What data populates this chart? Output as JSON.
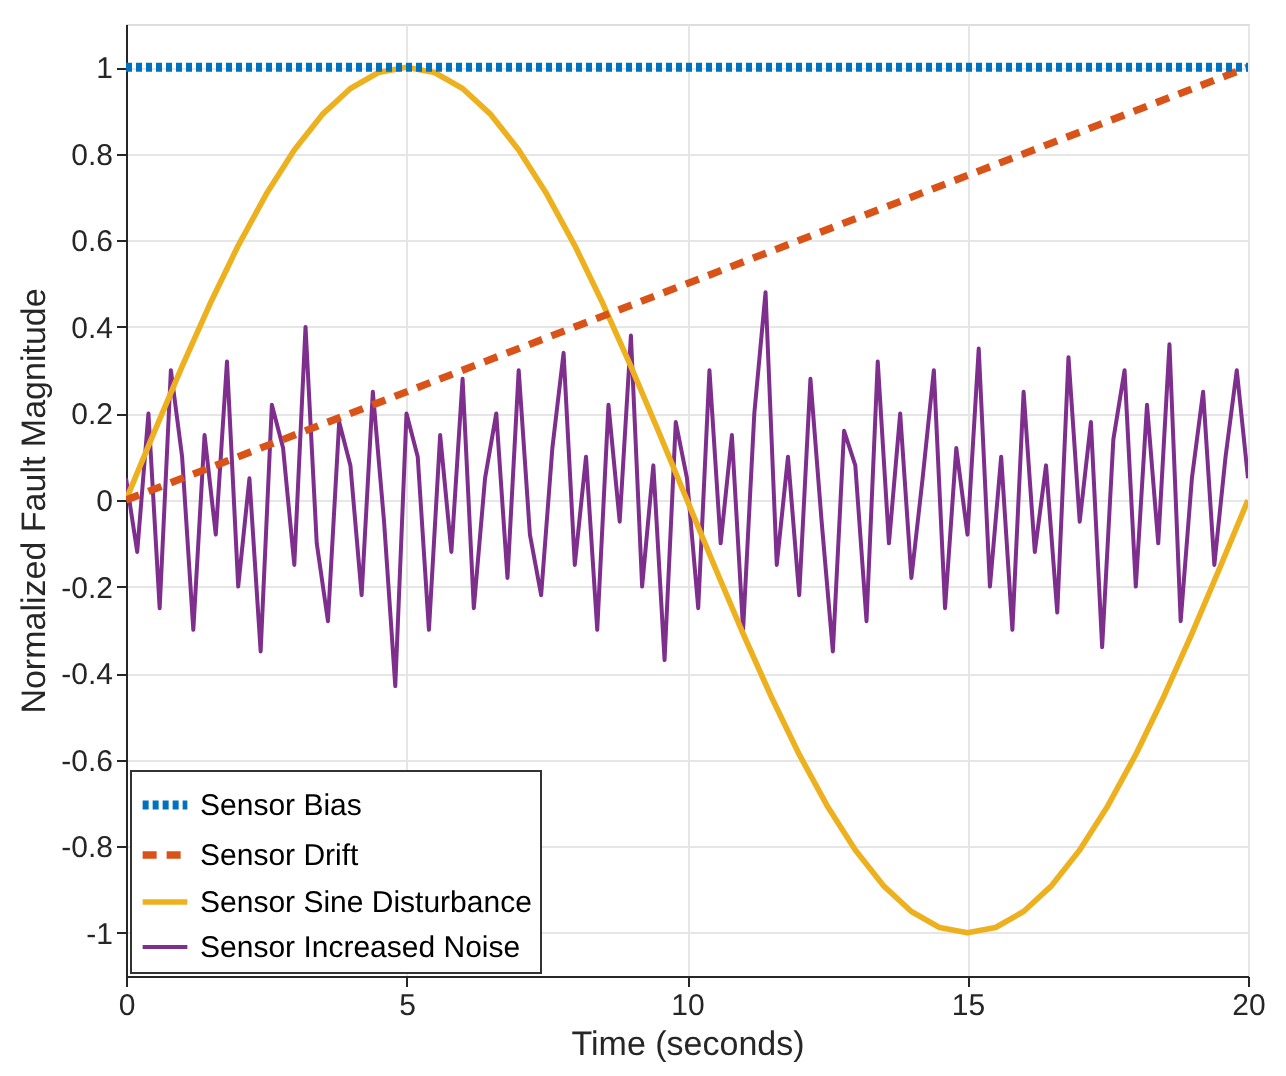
{
  "chart_data": {
    "type": "line",
    "xlabel": "Time (seconds)",
    "ylabel": "Normalized Fault Magnitude",
    "xlim": [
      0,
      20
    ],
    "ylim": [
      -1.1,
      1.1
    ],
    "xticks": [
      0,
      5,
      10,
      15,
      20
    ],
    "yticks": [
      -1,
      -0.8,
      -0.6,
      -0.4,
      -0.2,
      0,
      0.2,
      0.4,
      0.6,
      0.8,
      1
    ],
    "grid": true,
    "legend": "bottom left",
    "marker": "none",
    "series": [
      {
        "name": "Sensor Bias",
        "color": "#0072bd",
        "line_style": "dotted",
        "x": [
          0,
          20
        ],
        "values": [
          1,
          1
        ]
      },
      {
        "name": "Sensor Drift",
        "color": "#d95319",
        "line_style": "dashed",
        "x": [
          0,
          20
        ],
        "values": [
          0,
          1
        ]
      },
      {
        "name": "Sensor Sine Disturbance",
        "color": "#edb120",
        "line_style": "solid",
        "x": [
          0,
          0.5,
          1,
          1.5,
          2,
          2.5,
          3,
          3.5,
          4,
          4.5,
          5,
          5.5,
          6,
          6.5,
          7,
          7.5,
          8,
          8.5,
          9,
          9.5,
          10,
          10.5,
          11,
          11.5,
          12,
          12.5,
          13,
          13.5,
          14,
          14.5,
          15,
          15.5,
          16,
          16.5,
          17,
          17.5,
          18,
          18.5,
          19,
          19.5,
          20
        ],
        "values": [
          0,
          0.156,
          0.309,
          0.454,
          0.588,
          0.707,
          0.809,
          0.891,
          0.951,
          0.988,
          1,
          0.988,
          0.951,
          0.891,
          0.809,
          0.707,
          0.588,
          0.454,
          0.309,
          0.156,
          0,
          -0.156,
          -0.309,
          -0.454,
          -0.588,
          -0.707,
          -0.809,
          -0.891,
          -0.951,
          -0.988,
          -1,
          -0.988,
          -0.951,
          -0.891,
          -0.809,
          -0.707,
          -0.588,
          -0.454,
          -0.309,
          -0.156,
          0
        ]
      },
      {
        "name": "Sensor Increased Noise",
        "color": "#7e2f8e",
        "line_style": "solid",
        "x": [
          0,
          0.2,
          0.4,
          0.6,
          0.8,
          1,
          1.2,
          1.4,
          1.6,
          1.8,
          2,
          2.2,
          2.4,
          2.6,
          2.8,
          3,
          3.2,
          3.4,
          3.6,
          3.8,
          4,
          4.2,
          4.4,
          4.6,
          4.8,
          5,
          5.2,
          5.4,
          5.6,
          5.8,
          6,
          6.2,
          6.4,
          6.6,
          6.8,
          7,
          7.2,
          7.4,
          7.6,
          7.8,
          8,
          8.2,
          8.4,
          8.6,
          8.8,
          9,
          9.2,
          9.4,
          9.6,
          9.8,
          10,
          10.2,
          10.4,
          10.6,
          10.8,
          11,
          11.2,
          11.4,
          11.6,
          11.8,
          12,
          12.2,
          12.4,
          12.6,
          12.8,
          13,
          13.2,
          13.4,
          13.6,
          13.8,
          14,
          14.2,
          14.4,
          14.6,
          14.8,
          15,
          15.2,
          15.4,
          15.6,
          15.8,
          16,
          16.2,
          16.4,
          16.6,
          16.8,
          17,
          17.2,
          17.4,
          17.6,
          17.8,
          18,
          18.2,
          18.4,
          18.6,
          18.8,
          19,
          19.2,
          19.4,
          19.6,
          19.8,
          20
        ],
        "values": [
          0.05,
          -0.12,
          0.2,
          -0.25,
          0.3,
          0.1,
          -0.3,
          0.15,
          -0.08,
          0.32,
          -0.2,
          0.05,
          -0.35,
          0.22,
          0.12,
          -0.15,
          0.4,
          -0.1,
          -0.28,
          0.18,
          0.08,
          -0.22,
          0.25,
          -0.05,
          -0.43,
          0.2,
          0.1,
          -0.3,
          0.15,
          -0.12,
          0.28,
          -0.25,
          0.05,
          0.2,
          -0.18,
          0.3,
          -0.08,
          -0.22,
          0.12,
          0.34,
          -0.15,
          0.1,
          -0.3,
          0.22,
          -0.05,
          0.38,
          -0.2,
          0.08,
          -0.37,
          0.18,
          0.05,
          -0.25,
          0.3,
          -0.1,
          0.15,
          -0.3,
          0.2,
          0.48,
          -0.15,
          0.1,
          -0.22,
          0.28,
          -0.05,
          -0.35,
          0.16,
          0.08,
          -0.28,
          0.32,
          -0.1,
          0.2,
          -0.18,
          0.05,
          0.3,
          -0.25,
          0.12,
          -0.08,
          0.35,
          -0.2,
          0.1,
          -0.3,
          0.25,
          -0.12,
          0.08,
          -0.26,
          0.33,
          -0.05,
          0.18,
          -0.34,
          0.14,
          0.3,
          -0.2,
          0.22,
          -0.1,
          0.36,
          -0.28,
          0.05,
          0.25,
          -0.15,
          0.1,
          0.3,
          0.05
        ]
      }
    ]
  }
}
